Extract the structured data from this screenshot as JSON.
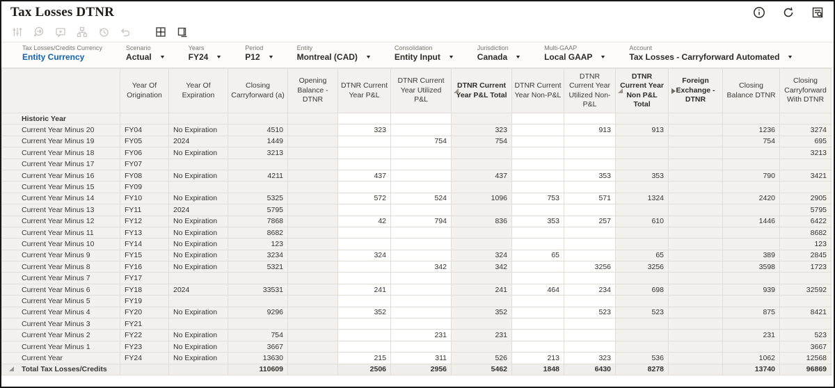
{
  "title": "Tax Losses DTNR",
  "title_actions": [
    "info-icon",
    "refresh-icon",
    "inspect-icon"
  ],
  "toolbar_icons": [
    {
      "name": "adjust-icon",
      "enabled": false
    },
    {
      "name": "share-icon",
      "enabled": false
    },
    {
      "name": "comment-icon",
      "enabled": false
    },
    {
      "name": "hierarchy-icon",
      "enabled": false
    },
    {
      "name": "history-icon",
      "enabled": false
    },
    {
      "name": "undo-icon",
      "enabled": false
    },
    {
      "name": "grid-icon",
      "enabled": true
    },
    {
      "name": "window-icon",
      "enabled": true
    }
  ],
  "colors": {
    "accent_blue": "#0f62ac",
    "readonly_bg": "#f3f1ee",
    "editable_bg": "#ffffff"
  },
  "pov": {
    "items": [
      {
        "label": "Tax Losses/Credits Currency",
        "value": "Entity Currency",
        "dropdown": false,
        "accent": true
      },
      {
        "label": "Scenario",
        "value": "Actual",
        "dropdown": true
      },
      {
        "label": "Years",
        "value": "FY24",
        "dropdown": true
      },
      {
        "label": "Period",
        "value": "P12",
        "dropdown": true
      },
      {
        "label": "Entity",
        "value": "Montreal (CAD)",
        "dropdown": true
      },
      {
        "label": "Consolidation",
        "value": "Entity Input",
        "dropdown": true
      },
      {
        "label": "Jurisdiction",
        "value": "Canada",
        "dropdown": true
      },
      {
        "label": "Multi-GAAP",
        "value": "Local GAAP",
        "dropdown": true
      },
      {
        "label": "Account",
        "value": "Tax Losses - Carryforward Automated",
        "dropdown": true
      }
    ]
  },
  "table": {
    "columns": [
      {
        "key": "origination",
        "label": "Year Of Origination",
        "align": "left"
      },
      {
        "key": "expiration",
        "label": "Year Of Expiration",
        "align": "left"
      },
      {
        "key": "closing_cf",
        "label": "Closing Carryforward (a)",
        "align": "right"
      },
      {
        "key": "opening_dtnr",
        "label": "Opening Balance - DTNR",
        "align": "right"
      },
      {
        "key": "pnl",
        "label": "DTNR Current Year P&L",
        "align": "right",
        "editable": true
      },
      {
        "key": "pnl_util",
        "label": "DTNR Current Year Utilized P&L",
        "align": "right",
        "editable": true
      },
      {
        "key": "pnl_total",
        "label": "DTNR Current Year P&L Total",
        "align": "right",
        "bold": true,
        "icon": "collapse"
      },
      {
        "key": "nonpnl",
        "label": "DTNR Current Year Non-P&L",
        "align": "right",
        "editable": true
      },
      {
        "key": "nonpnl_util",
        "label": "DTNR Current Year Utilized Non-P&L",
        "align": "right",
        "editable": true
      },
      {
        "key": "nonpnl_total",
        "label": "DTNR Current Year Non P&L Total",
        "align": "right",
        "bold": true,
        "icon": "collapse"
      },
      {
        "key": "fx",
        "label": "Foreign Exchange - DTNR",
        "align": "right",
        "bold": true,
        "icon": "expand"
      },
      {
        "key": "closing_bal",
        "label": "Closing Balance DTNR",
        "align": "right"
      },
      {
        "key": "closing_cf_dtnr",
        "label": "Closing Carryforward With DTNR",
        "align": "right"
      }
    ],
    "rows": [
      {
        "label": "Historic Year",
        "style": "parent",
        "cells": [
          "",
          "",
          "",
          "",
          "",
          "",
          "",
          "",
          "",
          "",
          "",
          "",
          ""
        ]
      },
      {
        "label": "Current Year Minus 20",
        "style": "member",
        "cells": [
          "FY04",
          "No Expiration",
          "4510",
          "",
          "323",
          "",
          "323",
          "",
          "913",
          "913",
          "",
          "1236",
          "3274"
        ]
      },
      {
        "label": "Current Year Minus 19",
        "style": "member",
        "cells": [
          "FY05",
          "2024",
          "1449",
          "",
          "",
          "754",
          "754",
          "",
          "",
          "",
          "",
          "754",
          "695"
        ]
      },
      {
        "label": "Current Year Minus 18",
        "style": "member",
        "cells": [
          "FY06",
          "No Expiration",
          "3213",
          "",
          "",
          "",
          "",
          "",
          "",
          "",
          "",
          "",
          "3213"
        ]
      },
      {
        "label": "Current Year Minus 17",
        "style": "member",
        "cells": [
          "FY07",
          "",
          "",
          "",
          "",
          "",
          "",
          "",
          "",
          "",
          "",
          "",
          ""
        ]
      },
      {
        "label": "Current Year Minus 16",
        "style": "member",
        "cells": [
          "FY08",
          "No Expiration",
          "4211",
          "",
          "437",
          "",
          "437",
          "",
          "353",
          "353",
          "",
          "790",
          "3421"
        ]
      },
      {
        "label": "Current Year Minus 15",
        "style": "member",
        "cells": [
          "FY09",
          "",
          "",
          "",
          "",
          "",
          "",
          "",
          "",
          "",
          "",
          "",
          ""
        ]
      },
      {
        "label": "Current Year Minus 14",
        "style": "member",
        "cells": [
          "FY10",
          "No Expiration",
          "5325",
          "",
          "572",
          "524",
          "1096",
          "753",
          "571",
          "1324",
          "",
          "2420",
          "2905"
        ]
      },
      {
        "label": "Current Year Minus 13",
        "style": "member",
        "cells": [
          "FY11",
          "2024",
          "5795",
          "",
          "",
          "",
          "",
          "",
          "",
          "",
          "",
          "",
          "5795"
        ]
      },
      {
        "label": "Current Year Minus 12",
        "style": "member",
        "cells": [
          "FY12",
          "No Expiration",
          "7868",
          "",
          "42",
          "794",
          "836",
          "353",
          "257",
          "610",
          "",
          "1446",
          "6422"
        ]
      },
      {
        "label": "Current Year Minus 11",
        "style": "member",
        "cells": [
          "FY13",
          "No Expiration",
          "8682",
          "",
          "",
          "",
          "",
          "",
          "",
          "",
          "",
          "",
          "8682"
        ]
      },
      {
        "label": "Current Year Minus 10",
        "style": "member",
        "cells": [
          "FY14",
          "No Expiration",
          "123",
          "",
          "",
          "",
          "",
          "",
          "",
          "",
          "",
          "",
          "123"
        ]
      },
      {
        "label": "Current Year Minus 9",
        "style": "member",
        "cells": [
          "FY15",
          "No Expiration",
          "3234",
          "",
          "324",
          "",
          "324",
          "65",
          "",
          "65",
          "",
          "389",
          "2845"
        ]
      },
      {
        "label": "Current Year Minus 8",
        "style": "member",
        "cells": [
          "FY16",
          "No Expiration",
          "5321",
          "",
          "",
          "342",
          "342",
          "",
          "3256",
          "3256",
          "",
          "3598",
          "1723"
        ]
      },
      {
        "label": "Current Year Minus 7",
        "style": "member",
        "cells": [
          "FY17",
          "",
          "",
          "",
          "",
          "",
          "",
          "",
          "",
          "",
          "",
          "",
          ""
        ]
      },
      {
        "label": "Current Year Minus 6",
        "style": "member",
        "cells": [
          "FY18",
          "2024",
          "33531",
          "",
          "241",
          "",
          "241",
          "464",
          "234",
          "698",
          "",
          "939",
          "32592"
        ]
      },
      {
        "label": "Current Year Minus 5",
        "style": "member",
        "cells": [
          "FY19",
          "",
          "",
          "",
          "",
          "",
          "",
          "",
          "",
          "",
          "",
          "",
          ""
        ]
      },
      {
        "label": "Current Year Minus 4",
        "style": "member",
        "cells": [
          "FY20",
          "No Expiration",
          "9296",
          "",
          "352",
          "",
          "352",
          "",
          "523",
          "523",
          "",
          "875",
          "8421"
        ]
      },
      {
        "label": "Current Year Minus 3",
        "style": "member",
        "cells": [
          "FY21",
          "",
          "",
          "",
          "",
          "",
          "",
          "",
          "",
          "",
          "",
          "",
          ""
        ]
      },
      {
        "label": "Current Year Minus 2",
        "style": "member",
        "cells": [
          "FY22",
          "No Expiration",
          "754",
          "",
          "",
          "231",
          "231",
          "",
          "",
          "",
          "",
          "231",
          "523"
        ]
      },
      {
        "label": "Current Year Minus 1",
        "style": "member",
        "cells": [
          "FY23",
          "No Expiration",
          "3667",
          "",
          "",
          "",
          "",
          "",
          "",
          "",
          "",
          "",
          "3667"
        ]
      },
      {
        "label": "Current Year",
        "style": "member",
        "cells": [
          "FY24",
          "No Expiration",
          "13630",
          "",
          "215",
          "311",
          "526",
          "213",
          "323",
          "536",
          "",
          "1062",
          "12568"
        ]
      },
      {
        "label": "Total Tax Losses/Credits",
        "style": "total",
        "icon": "collapse",
        "cells": [
          "",
          "",
          "110609",
          "",
          "2506",
          "2956",
          "5462",
          "1848",
          "6430",
          "8278",
          "",
          "13740",
          "96869"
        ]
      }
    ]
  }
}
